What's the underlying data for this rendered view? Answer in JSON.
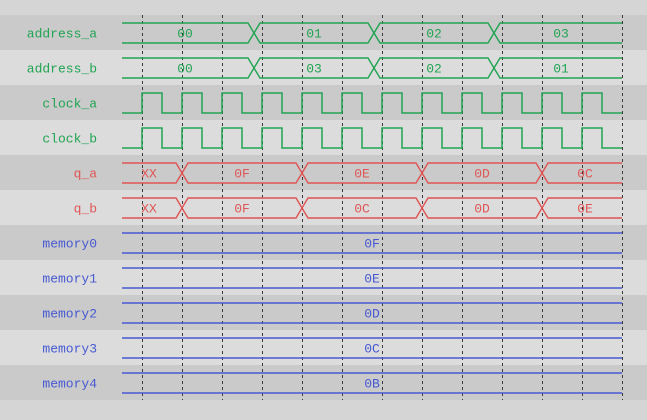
{
  "palette": {
    "page_bg": "#d5d5d5",
    "row_dark": "#cacaca",
    "row_light": "#dcdcdc",
    "grid_line": "#3b3b3b",
    "signal_green": "#21a453",
    "signal_red": "#e05555",
    "signal_blue": "#4659d2"
  },
  "timeline": {
    "grid_count": 13,
    "lead_fraction": 0.5
  },
  "signals": [
    {
      "name": "address_a",
      "color": "signal_green",
      "kind": "bus",
      "transition_align": "end",
      "segments": [
        {
          "label": "00",
          "until": 3
        },
        {
          "label": "01",
          "until": 6
        },
        {
          "label": "02",
          "until": 9
        },
        {
          "label": "03",
          "until": 12
        }
      ]
    },
    {
      "name": "address_b",
      "color": "signal_green",
      "kind": "bus",
      "transition_align": "end",
      "segments": [
        {
          "label": "00",
          "until": 3
        },
        {
          "label": "03",
          "until": 6
        },
        {
          "label": "02",
          "until": 9
        },
        {
          "label": "01",
          "until": 12
        }
      ]
    },
    {
      "name": "clock_a",
      "color": "signal_green",
      "kind": "clock",
      "clock": {
        "first_rise": 0,
        "last_rise": 11,
        "period": 1,
        "duty": 0.5
      }
    },
    {
      "name": "clock_b",
      "color": "signal_green",
      "kind": "clock",
      "clock": {
        "first_rise": 0,
        "last_rise": 11,
        "period": 1,
        "duty": 0.5
      }
    },
    {
      "name": "q_a",
      "color": "signal_red",
      "kind": "bus",
      "transition_align": "center",
      "segments": [
        {
          "label": "XX",
          "until": 1
        },
        {
          "label": "0F",
          "until": 4
        },
        {
          "label": "0E",
          "until": 7
        },
        {
          "label": "0D",
          "until": 10
        },
        {
          "label": "0C",
          "until": 12
        }
      ]
    },
    {
      "name": "q_b",
      "color": "signal_red",
      "kind": "bus",
      "transition_align": "center",
      "segments": [
        {
          "label": "XX",
          "until": 1
        },
        {
          "label": "0F",
          "until": 4
        },
        {
          "label": "0C",
          "until": 7
        },
        {
          "label": "0D",
          "until": 10
        },
        {
          "label": "0E",
          "until": 12
        }
      ]
    },
    {
      "name": "memory0",
      "color": "signal_blue",
      "kind": "bus",
      "transition_align": "center",
      "segments": [
        {
          "label": "0F",
          "until": 12
        }
      ]
    },
    {
      "name": "memory1",
      "color": "signal_blue",
      "kind": "bus",
      "transition_align": "center",
      "segments": [
        {
          "label": "0E",
          "until": 12
        }
      ]
    },
    {
      "name": "memory2",
      "color": "signal_blue",
      "kind": "bus",
      "transition_align": "center",
      "segments": [
        {
          "label": "0D",
          "until": 12
        }
      ]
    },
    {
      "name": "memory3",
      "color": "signal_blue",
      "kind": "bus",
      "transition_align": "center",
      "segments": [
        {
          "label": "0C",
          "until": 12
        }
      ]
    },
    {
      "name": "memory4",
      "color": "signal_blue",
      "kind": "bus",
      "transition_align": "center",
      "segments": [
        {
          "label": "0B",
          "until": 12
        }
      ]
    }
  ]
}
